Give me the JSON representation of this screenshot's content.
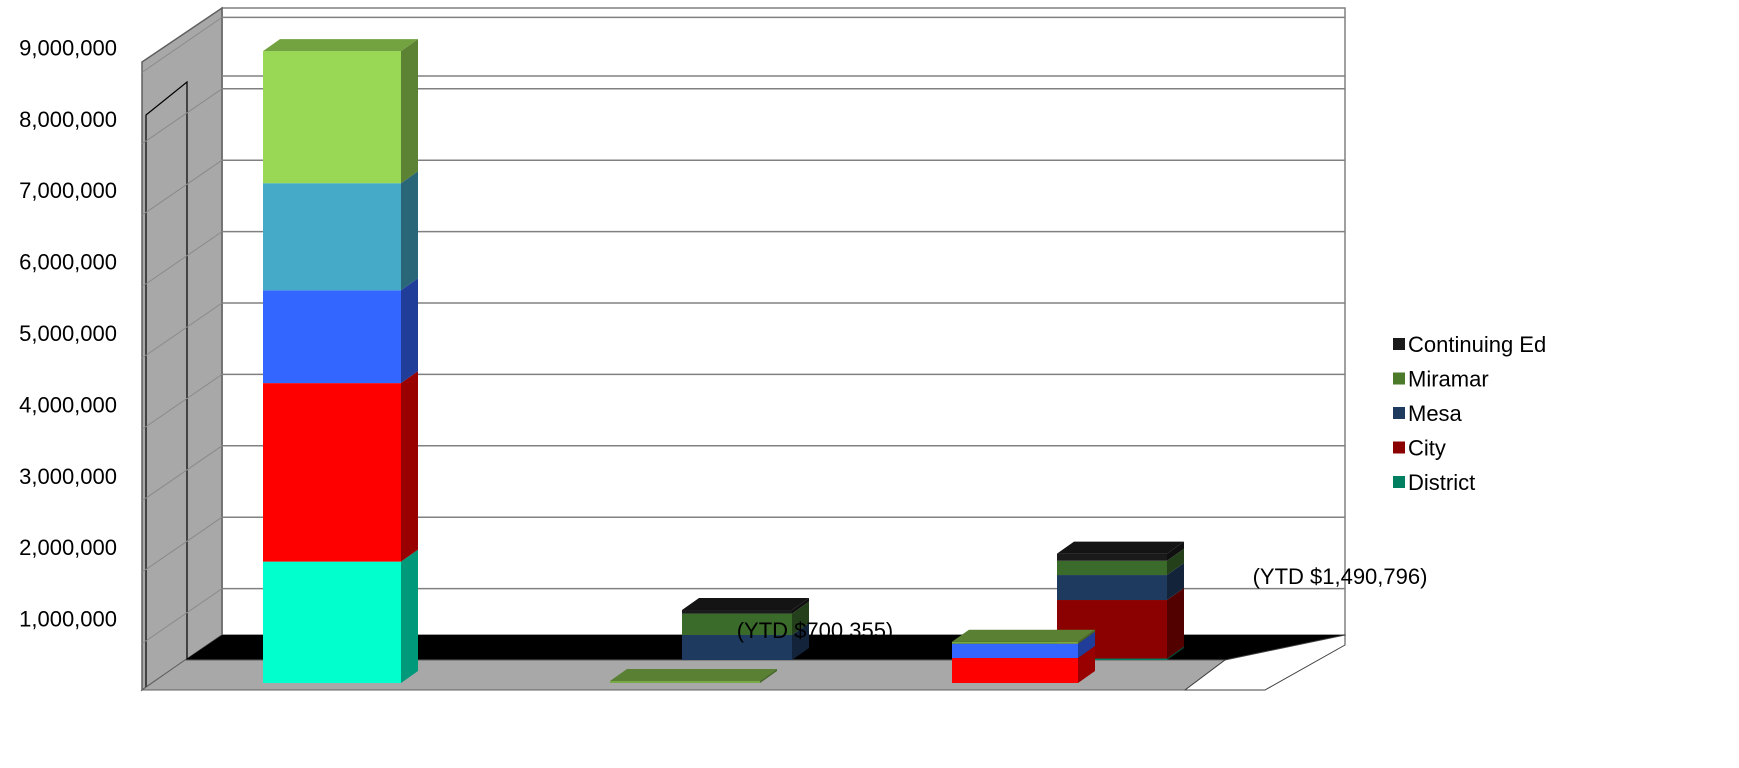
{
  "chart_data": {
    "type": "bar",
    "stacked": true,
    "three_d": true,
    "ylim": [
      0,
      10000000
    ],
    "y_ticks": [
      "1,000,000",
      "2,000,000",
      "3,000,000",
      "4,000,000",
      "5,000,000",
      "6,000,000",
      "7,000,000",
      "8,000,000",
      "9,000,000"
    ],
    "grid": true,
    "legend_position": "right",
    "annotations": [
      "(YTD $700,355)",
      "(YTD $1,490,796)"
    ],
    "legend": [
      {
        "name": "Continuing Ed",
        "color": "#1a1a1a"
      },
      {
        "name": "Miramar",
        "color": "#4a7a2a"
      },
      {
        "name": "Mesa",
        "color": "#1f3a5f"
      },
      {
        "name": "City",
        "color": "#8b0000"
      },
      {
        "name": "District",
        "color": "#008060"
      }
    ],
    "bars": [
      {
        "row": "front",
        "slot": 0,
        "segments": [
          {
            "value": 1700000,
            "color": "#00ffcc"
          },
          {
            "value": 2500000,
            "color": "#ff0000"
          },
          {
            "value": 1300000,
            "color": "#3366ff"
          },
          {
            "value": 1500000,
            "color": "#44aac8"
          },
          {
            "value": 1850000,
            "color": "#99d855"
          }
        ]
      },
      {
        "row": "front",
        "slot": 1,
        "segments": [
          {
            "value": 20000,
            "color": "#77aa44"
          }
        ]
      },
      {
        "row": "front",
        "slot": 2,
        "segments": [
          {
            "value": 350000,
            "color": "#ff0000"
          },
          {
            "value": 200000,
            "color": "#3366ff"
          },
          {
            "value": 20000,
            "color": "#77aa44"
          }
        ]
      },
      {
        "row": "back",
        "slot": 1,
        "segments": [
          {
            "value": 350000,
            "color": "#1f3a5f"
          },
          {
            "value": 300000,
            "color": "#3b6b2b"
          },
          {
            "value": 50000,
            "color": "#1a1a1a"
          }
        ]
      },
      {
        "row": "back",
        "slot": 2,
        "segments": [
          {
            "value": 20000,
            "color": "#008060"
          },
          {
            "value": 820000,
            "color": "#8b0000"
          },
          {
            "value": 350000,
            "color": "#1f3a5f"
          },
          {
            "value": 200000,
            "color": "#3b6b2b"
          },
          {
            "value": 100000,
            "color": "#1a1a1a"
          }
        ]
      }
    ]
  }
}
